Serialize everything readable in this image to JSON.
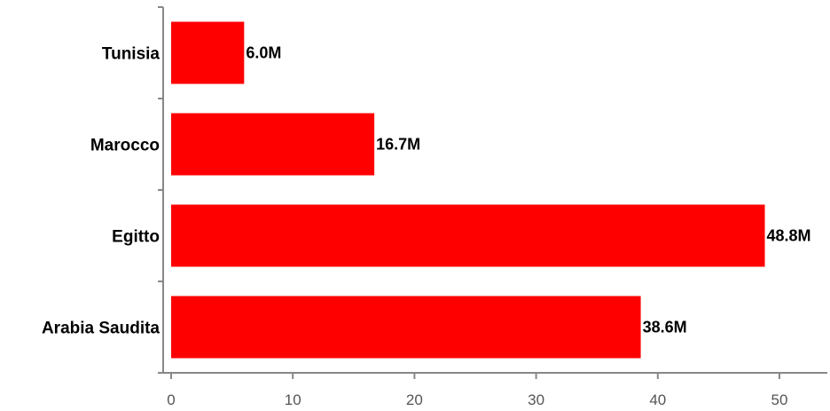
{
  "chart_data": {
    "type": "bar",
    "orientation": "horizontal",
    "categories": [
      "Tunisia",
      "Marocco",
      "Egitto",
      "Arabia Saudita"
    ],
    "values": [
      6.0,
      16.7,
      48.8,
      38.6
    ],
    "data_labels": [
      "6.0M",
      "16.7M",
      "48.8M",
      "38.6M"
    ],
    "x_ticks": [
      0,
      10,
      20,
      30,
      40,
      50
    ],
    "xlim": [
      0,
      53.5
    ],
    "title": "",
    "xlabel": "",
    "ylabel": "",
    "grid": false,
    "legend": "none",
    "bar_color": "#ff0000",
    "axis_color": "#888888"
  }
}
